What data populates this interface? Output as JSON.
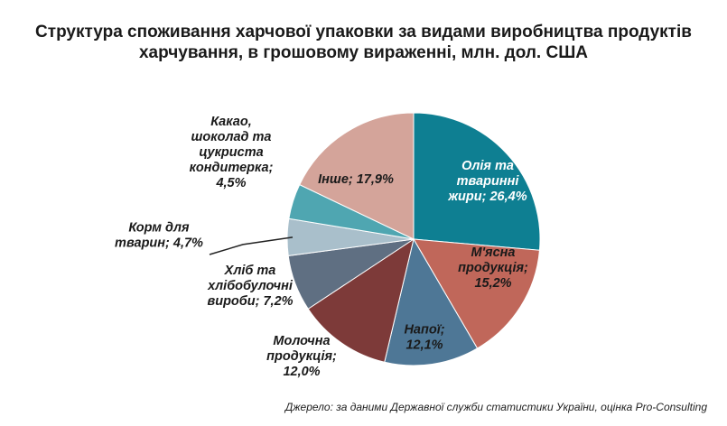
{
  "chart_data": {
    "type": "pie",
    "title": [
      "Структура споживання харчової упаковки за видами виробництва продуктів",
      "харчування, в грошовому вираженні, млн. дол. США"
    ],
    "slices": [
      {
        "label": [
          "Олія та",
          "тваринні",
          "жири; 26,4%"
        ],
        "value": 26.4,
        "color": "#0e7f92"
      },
      {
        "label": [
          "М'ясна",
          "продукція;",
          "15,2%"
        ],
        "value": 15.2,
        "color": "#c0675a"
      },
      {
        "label": [
          "Напої;",
          "12,1%"
        ],
        "value": 12.1,
        "color": "#4e7796"
      },
      {
        "label": [
          "Молочна",
          "продукція;",
          "12,0%"
        ],
        "value": 12.0,
        "color": "#7d3a39"
      },
      {
        "label": [
          "Хліб та",
          "хлібобулочні",
          "вироби; 7,2%"
        ],
        "value": 7.2,
        "color": "#5f6f82"
      },
      {
        "label": [
          "Корм для",
          "тварин; 4,7%"
        ],
        "value": 4.7,
        "color": "#a9bfcb"
      },
      {
        "label": [
          "Какао,",
          "шоколад та",
          "цукриста",
          "кондитерка;",
          "4,5%"
        ],
        "value": 4.5,
        "color": "#4fa6b1"
      },
      {
        "label": [
          "Інше; 17,9%"
        ],
        "value": 17.9,
        "color": "#d4a49a"
      }
    ]
  },
  "source": "Джерело: за даними Державної служби статистики України, оцінка Pro-Consulting"
}
